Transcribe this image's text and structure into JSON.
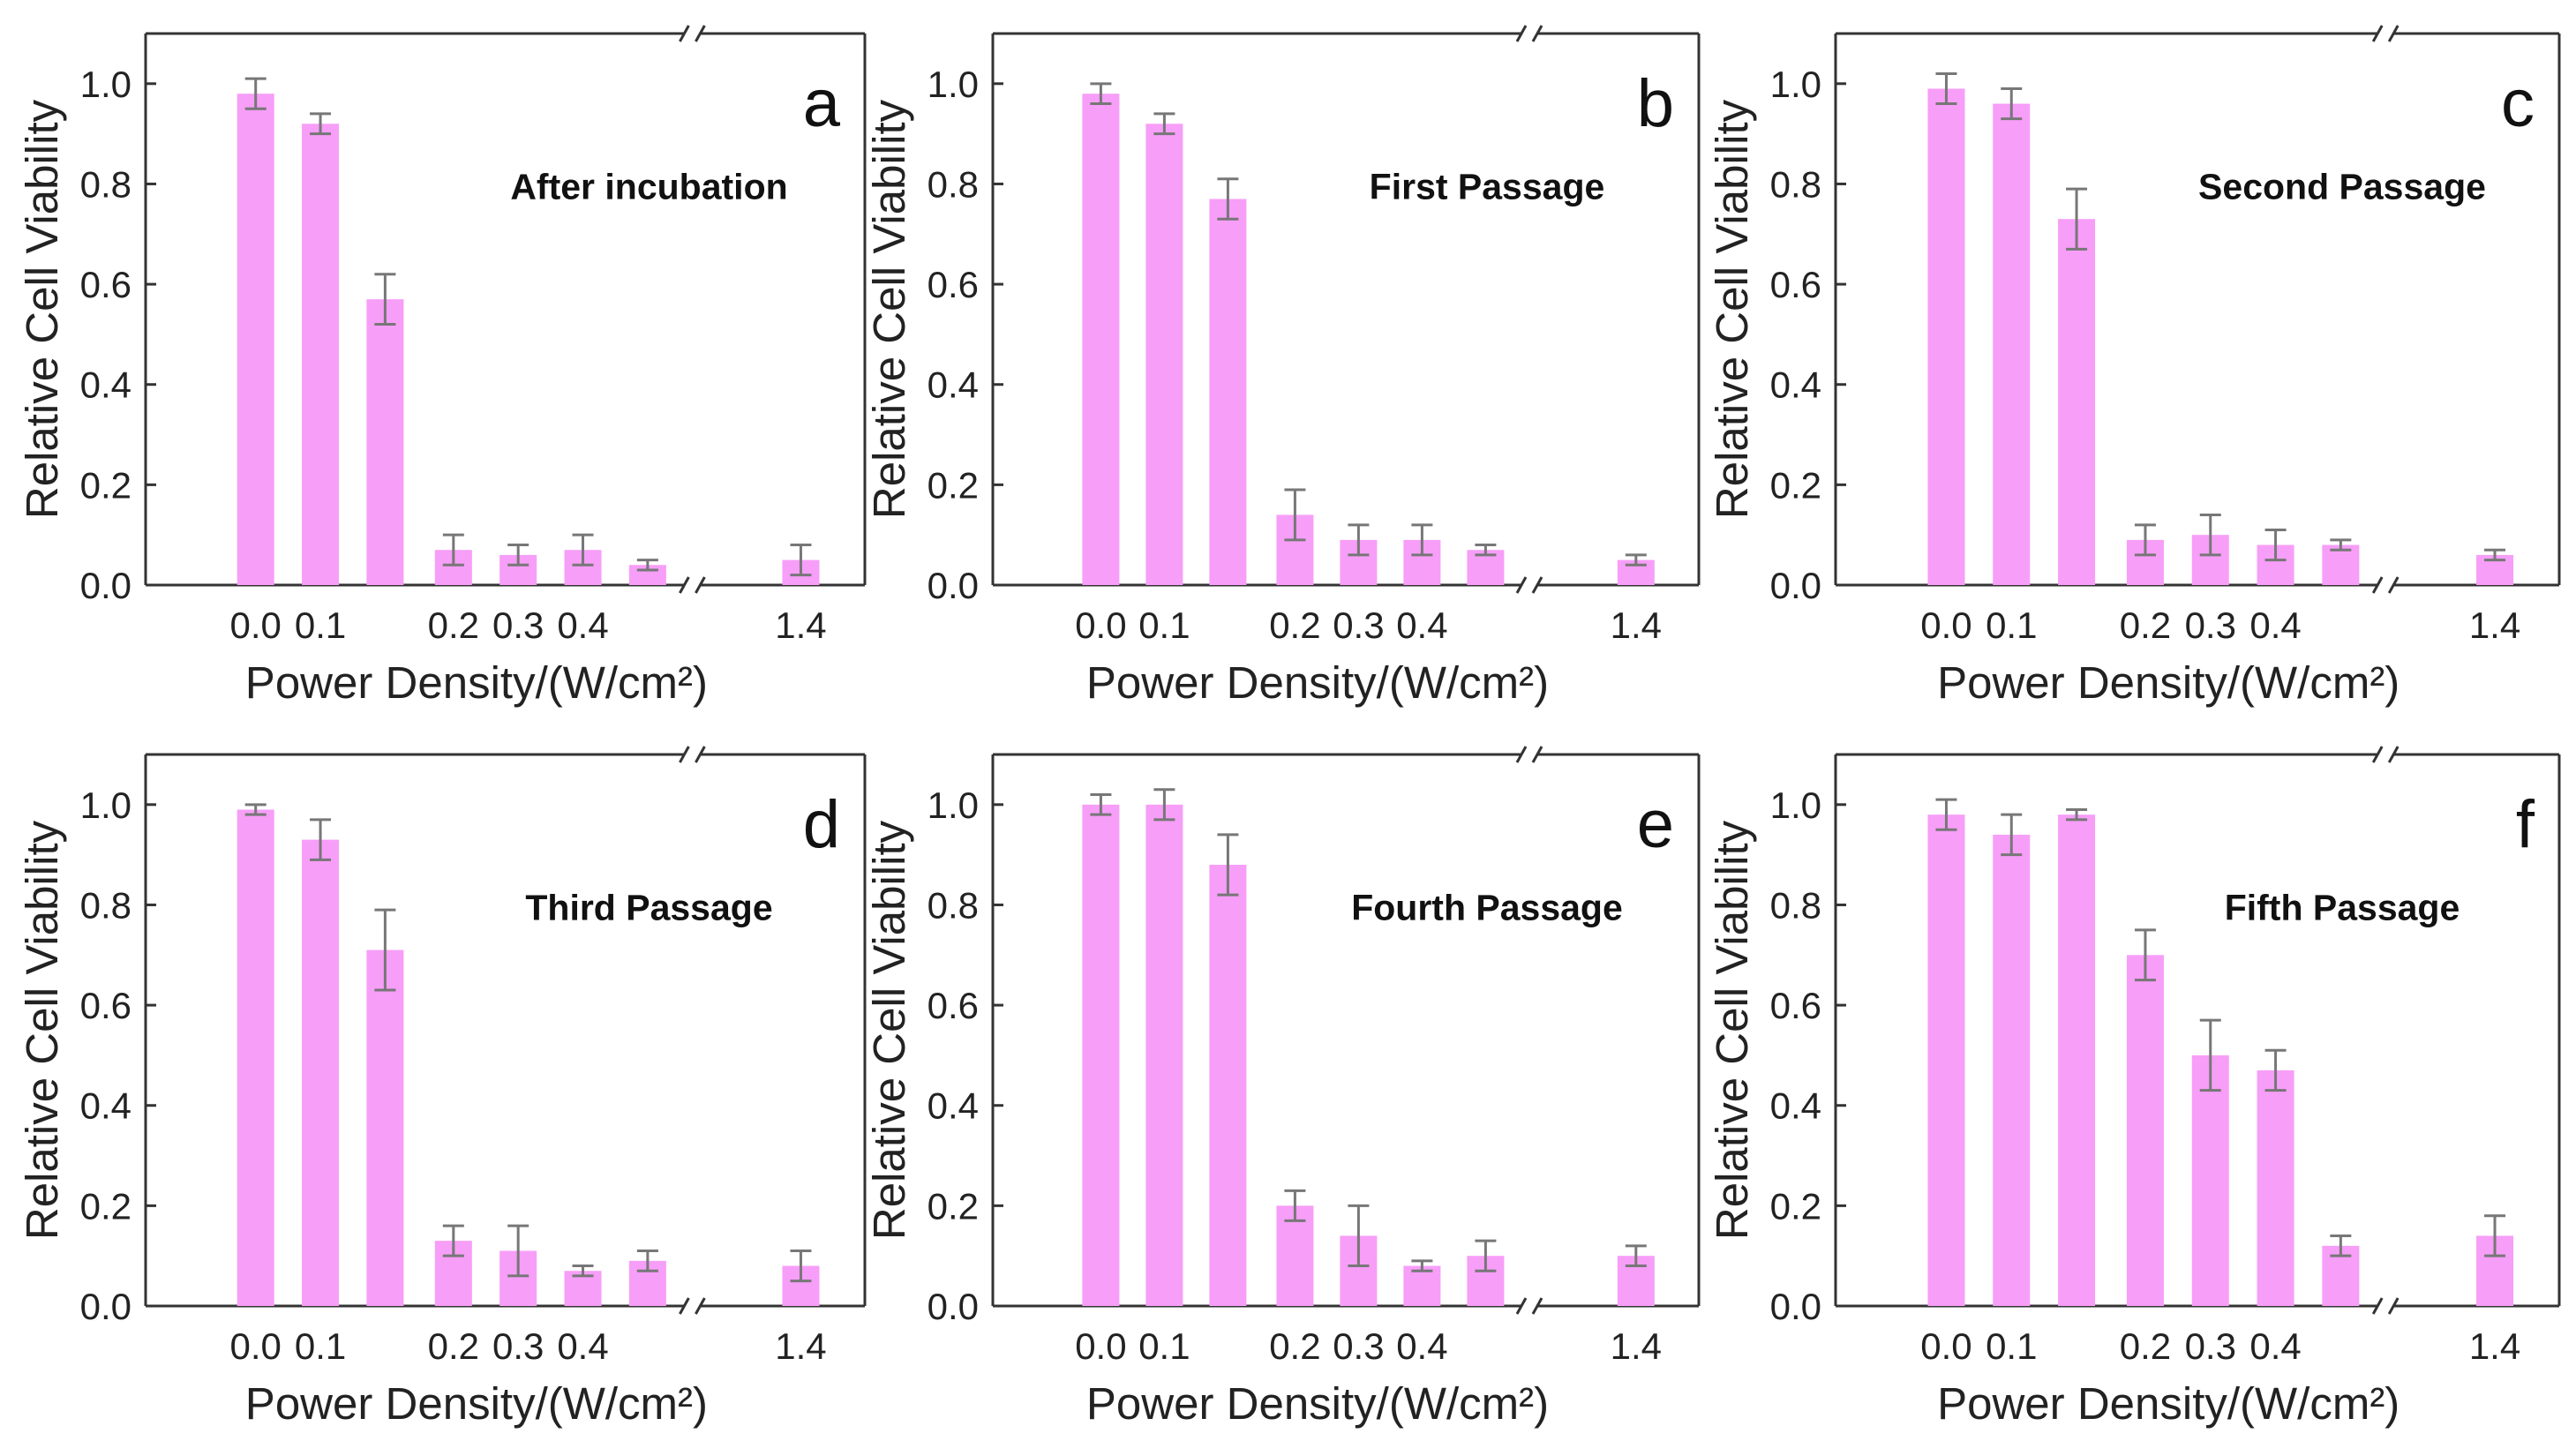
{
  "figure": {
    "bar_color": "#f79ef8",
    "error_bar_color": "#777777",
    "axis_color": "#333333"
  },
  "chart_data": [
    {
      "type": "bar",
      "panel": "a",
      "title": "After incubation",
      "xlabel": "Power Density/(W/cm²)",
      "ylabel": "Relative Cell Viability",
      "x": [
        0.0,
        0.07,
        0.14,
        0.21,
        0.28,
        0.35,
        0.42,
        1.4
      ],
      "values": [
        0.98,
        0.92,
        0.57,
        0.07,
        0.06,
        0.07,
        0.04,
        0.05
      ],
      "errors": [
        0.03,
        0.02,
        0.05,
        0.03,
        0.02,
        0.03,
        0.01,
        0.03
      ],
      "ylim": [
        0,
        1.1
      ],
      "yticks": [
        0.0,
        0.2,
        0.4,
        0.6,
        0.8,
        1.0
      ],
      "ytick_labels": [
        "0.0",
        "0.2",
        "0.4",
        "0.6",
        "0.8",
        "1.0"
      ],
      "xtick_labels": [
        "0.0",
        "0.1",
        "0.2",
        "0.3",
        "0.4",
        "1.4"
      ],
      "x_axis_break": true
    },
    {
      "type": "bar",
      "panel": "b",
      "title": "First Passage",
      "xlabel": "Power Density/(W/cm²)",
      "ylabel": "Relative Cell Viability",
      "x": [
        0.0,
        0.07,
        0.14,
        0.21,
        0.28,
        0.35,
        0.42,
        1.4
      ],
      "values": [
        0.98,
        0.92,
        0.77,
        0.14,
        0.09,
        0.09,
        0.07,
        0.05
      ],
      "errors": [
        0.02,
        0.02,
        0.04,
        0.05,
        0.03,
        0.03,
        0.01,
        0.01
      ],
      "ylim": [
        0,
        1.1
      ],
      "yticks": [
        0.0,
        0.2,
        0.4,
        0.6,
        0.8,
        1.0
      ],
      "ytick_labels": [
        "0.0",
        "0.2",
        "0.4",
        "0.6",
        "0.8",
        "1.0"
      ],
      "xtick_labels": [
        "0.0",
        "0.1",
        "0.2",
        "0.3",
        "0.4",
        "1.4"
      ],
      "x_axis_break": true
    },
    {
      "type": "bar",
      "panel": "c",
      "title": "Second Passage",
      "xlabel": "Power Density/(W/cm²)",
      "ylabel": "Relative Cell Viability",
      "x": [
        0.0,
        0.07,
        0.14,
        0.21,
        0.28,
        0.35,
        0.42,
        1.4
      ],
      "values": [
        0.99,
        0.96,
        0.73,
        0.09,
        0.1,
        0.08,
        0.08,
        0.06
      ],
      "errors": [
        0.03,
        0.03,
        0.06,
        0.03,
        0.04,
        0.03,
        0.01,
        0.01
      ],
      "ylim": [
        0,
        1.1
      ],
      "yticks": [
        0.0,
        0.2,
        0.4,
        0.6,
        0.8,
        1.0
      ],
      "ytick_labels": [
        "0.0",
        "0.2",
        "0.4",
        "0.6",
        "0.8",
        "1.0"
      ],
      "xtick_labels": [
        "0.0",
        "0.1",
        "0.2",
        "0.3",
        "0.4",
        "1.4"
      ],
      "x_axis_break": true
    },
    {
      "type": "bar",
      "panel": "d",
      "title": "Third Passage",
      "xlabel": "Power Density/(W/cm²)",
      "ylabel": "Relative Cell Viability",
      "x": [
        0.0,
        0.07,
        0.14,
        0.21,
        0.28,
        0.35,
        0.42,
        1.4
      ],
      "values": [
        0.99,
        0.93,
        0.71,
        0.13,
        0.11,
        0.07,
        0.09,
        0.08
      ],
      "errors": [
        0.01,
        0.04,
        0.08,
        0.03,
        0.05,
        0.01,
        0.02,
        0.03
      ],
      "ylim": [
        0,
        1.1
      ],
      "yticks": [
        0.0,
        0.2,
        0.4,
        0.6,
        0.8,
        1.0
      ],
      "ytick_labels": [
        "0.0",
        "0.2",
        "0.4",
        "0.6",
        "0.8",
        "1.0"
      ],
      "xtick_labels": [
        "0.0",
        "0.1",
        "0.2",
        "0.3",
        "0.4",
        "1.4"
      ],
      "x_axis_break": true
    },
    {
      "type": "bar",
      "panel": "e",
      "title": "Fourth Passage",
      "xlabel": "Power Density/(W/cm²)",
      "ylabel": "Relative Cell Viability",
      "x": [
        0.0,
        0.07,
        0.14,
        0.21,
        0.28,
        0.35,
        0.42,
        1.4
      ],
      "values": [
        1.0,
        1.0,
        0.88,
        0.2,
        0.14,
        0.08,
        0.1,
        0.1
      ],
      "errors": [
        0.02,
        0.03,
        0.06,
        0.03,
        0.06,
        0.01,
        0.03,
        0.02
      ],
      "ylim": [
        0,
        1.1
      ],
      "yticks": [
        0.0,
        0.2,
        0.4,
        0.6,
        0.8,
        1.0
      ],
      "ytick_labels": [
        "0.0",
        "0.2",
        "0.4",
        "0.6",
        "0.8",
        "1.0"
      ],
      "xtick_labels": [
        "0.0",
        "0.1",
        "0.2",
        "0.3",
        "0.4",
        "1.4"
      ],
      "x_axis_break": true
    },
    {
      "type": "bar",
      "panel": "f",
      "title": "Fifth Passage",
      "xlabel": "Power Density/(W/cm²)",
      "ylabel": "Relative Cell Viability",
      "x": [
        0.0,
        0.07,
        0.14,
        0.21,
        0.28,
        0.35,
        0.42,
        1.4
      ],
      "values": [
        0.98,
        0.94,
        0.98,
        0.7,
        0.5,
        0.47,
        0.12,
        0.14
      ],
      "errors": [
        0.03,
        0.04,
        0.01,
        0.05,
        0.07,
        0.04,
        0.02,
        0.04
      ],
      "ylim": [
        0,
        1.1
      ],
      "yticks": [
        0.0,
        0.2,
        0.4,
        0.6,
        0.8,
        1.0
      ],
      "ytick_labels": [
        "0.0",
        "0.2",
        "0.4",
        "0.6",
        "0.8",
        "1.0"
      ],
      "xtick_labels": [
        "0.0",
        "0.1",
        "0.2",
        "0.3",
        "0.4",
        "1.4"
      ],
      "x_axis_break": true
    }
  ]
}
